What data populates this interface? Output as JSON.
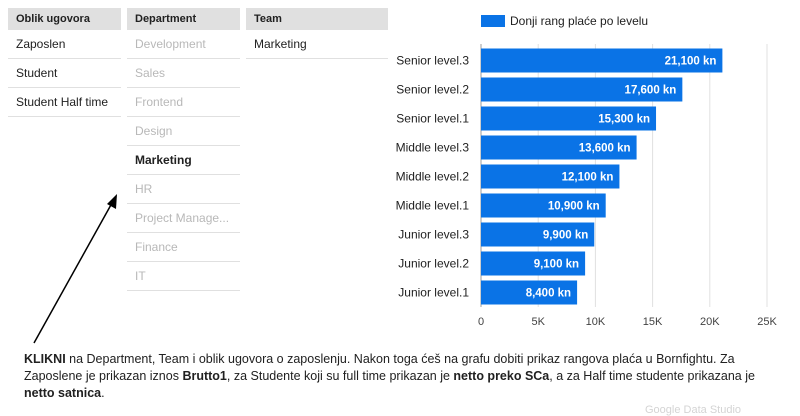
{
  "filters": {
    "oblik": {
      "header": "Oblik ugovora",
      "items": [
        "Zaposlen",
        "Student",
        "Student Half time"
      ]
    },
    "department": {
      "header": "Department",
      "items": [
        "Development",
        "Sales",
        "Frontend",
        "Design",
        "Marketing",
        "HR",
        "Project Manage...",
        "Finance",
        "IT"
      ],
      "selected": "Marketing"
    },
    "team": {
      "header": "Team",
      "items": [
        "Marketing"
      ]
    }
  },
  "chart_data": {
    "type": "bar",
    "orientation": "horizontal",
    "categories": [
      "Senior level.3",
      "Senior level.2",
      "Senior level.1",
      "Middle level.3",
      "Middle level.2",
      "Middle level.1",
      "Junior level.3",
      "Junior level.2",
      "Junior level.1"
    ],
    "series": [
      {
        "name": "Donji rang plaće po levelu",
        "values": [
          21100,
          17600,
          15300,
          13600,
          12100,
          10900,
          9900,
          9100,
          8400
        ],
        "labels": [
          "21,100 kn",
          "17,600 kn",
          "15,300 kn",
          "13,600 kn",
          "12,100 kn",
          "10,900 kn",
          "9,900 kn",
          "9,100 kn",
          "8,400 kn"
        ]
      }
    ],
    "xlim": [
      0,
      25000
    ],
    "xticks": [
      0,
      5000,
      10000,
      15000,
      20000,
      25000
    ],
    "xtick_labels": [
      "0",
      "5K",
      "10K",
      "15K",
      "20K",
      "25K"
    ],
    "grid": true,
    "legend": "top",
    "bar_color": "#0a73e6"
  },
  "instructions": {
    "p1": "KLIKNI",
    "p2": " na Department, Team i oblik ugovora o zaposlenju. Nakon toga ćeš na grafu dobiti prikaz rangova plaća u Bornfightu. Za Zaposlene je prikazan iznos ",
    "p3": "Brutto1",
    "p4": ", za Studente koji su full time prikazan je ",
    "p5": "netto preko SCa",
    "p6": ", a za Half time studente prikazana je ",
    "p7": "netto satnica",
    "p8": "."
  },
  "watermark": "Google Data Studio"
}
